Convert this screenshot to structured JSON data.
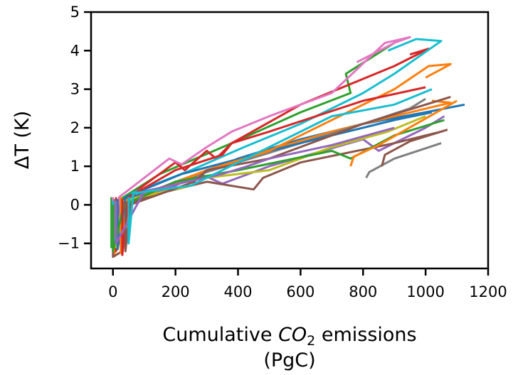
{
  "chart_data": {
    "type": "line",
    "title": "",
    "ylabel": "ΔT (K)",
    "xlabel": {
      "prefix": "Cumulative ",
      "math": "CO",
      "sub": "2",
      "suffix": " emissions",
      "line2": "(PgC)"
    },
    "xlim": [
      -70,
      1200
    ],
    "ylim": [
      -1.65,
      5
    ],
    "xticks": [
      0,
      200,
      400,
      600,
      800,
      1000,
      1200
    ],
    "xtick_labels": [
      "0",
      "200",
      "400",
      "600",
      "800",
      "1000",
      "1200"
    ],
    "yticks": [
      -1,
      0,
      1,
      2,
      3,
      4,
      5
    ],
    "ytick_labels": [
      "−1",
      "0",
      "1",
      "2",
      "3",
      "4",
      "5"
    ],
    "grid": false,
    "legend": "none",
    "colors": [
      "#1f77b4",
      "#ff7f0e",
      "#2ca02c",
      "#d62728",
      "#9467bd",
      "#8c564b",
      "#e377c2",
      "#7f7f7f",
      "#bcbd22",
      "#17becf"
    ],
    "series": [
      {
        "color": "#1f77b4",
        "points": [
          [
            0,
            0.1
          ],
          [
            0,
            -1.1
          ],
          [
            10,
            0.1
          ],
          [
            100,
            0.3
          ],
          [
            250,
            0.7
          ],
          [
            400,
            1.2
          ],
          [
            600,
            1.7
          ],
          [
            800,
            2.1
          ],
          [
            1000,
            2.4
          ],
          [
            1125,
            2.6
          ]
        ]
      },
      {
        "color": "#ff7f0e",
        "points": [
          [
            5,
            0.1
          ],
          [
            5,
            -1.3
          ],
          [
            20,
            0.0
          ],
          [
            120,
            0.35
          ],
          [
            300,
            0.9
          ],
          [
            450,
            1.3
          ],
          [
            700,
            1.9
          ],
          [
            900,
            2.3
          ],
          [
            1080,
            2.65
          ],
          [
            1020,
            2.7
          ]
        ]
      },
      {
        "color": "#2ca02c",
        "points": [
          [
            -5,
            0.2
          ],
          [
            -5,
            -1.1
          ],
          [
            15,
            0.1
          ],
          [
            150,
            0.8
          ],
          [
            380,
            1.6
          ],
          [
            600,
            2.4
          ],
          [
            760,
            2.9
          ],
          [
            745,
            3.4
          ],
          [
            900,
            4.2
          ]
        ]
      },
      {
        "color": "#d62728",
        "points": [
          [
            10,
            0.2
          ],
          [
            10,
            -1.2
          ],
          [
            30,
            0.1
          ],
          [
            200,
            1.1
          ],
          [
            230,
            0.9
          ],
          [
            300,
            1.4
          ],
          [
            330,
            1.2
          ],
          [
            380,
            1.6
          ],
          [
            600,
            2.6
          ],
          [
            900,
            3.6
          ],
          [
            1010,
            4.05
          ],
          [
            950,
            3.9
          ]
        ]
      },
      {
        "color": "#9467bd",
        "points": [
          [
            20,
            0.1
          ],
          [
            20,
            -1.0
          ],
          [
            40,
            0.0
          ],
          [
            200,
            0.5
          ],
          [
            280,
            0.8
          ],
          [
            350,
            0.55
          ],
          [
            500,
            1.0
          ],
          [
            800,
            1.7
          ],
          [
            850,
            1.4
          ],
          [
            1000,
            2.0
          ],
          [
            1060,
            2.3
          ]
        ]
      },
      {
        "color": "#8c564b",
        "points": [
          [
            0,
            0.1
          ],
          [
            0,
            -1.35
          ],
          [
            30,
            -1.2
          ],
          [
            40,
            0.0
          ],
          [
            150,
            0.3
          ],
          [
            300,
            0.6
          ],
          [
            450,
            0.4
          ],
          [
            480,
            0.7
          ],
          [
            600,
            1.1
          ],
          [
            900,
            1.6
          ],
          [
            1050,
            1.9
          ]
        ]
      },
      {
        "color": "#e377c2",
        "points": [
          [
            0,
            0.2
          ],
          [
            0,
            -1.0
          ],
          [
            20,
            0.2
          ],
          [
            180,
            1.2
          ],
          [
            220,
            1.05
          ],
          [
            300,
            1.5
          ],
          [
            380,
            1.9
          ],
          [
            500,
            2.3
          ],
          [
            700,
            2.9
          ],
          [
            870,
            4.2
          ],
          [
            950,
            4.35
          ],
          [
            900,
            4.2
          ],
          [
            780,
            3.7
          ]
        ]
      },
      {
        "color": "#7f7f7f",
        "points": [
          [
            5,
            0.15
          ],
          [
            5,
            -0.9
          ],
          [
            50,
            0.1
          ],
          [
            200,
            0.6
          ],
          [
            400,
            1.1
          ],
          [
            600,
            1.6
          ],
          [
            800,
            2.1
          ],
          [
            950,
            2.5
          ],
          [
            1000,
            2.75
          ]
        ]
      },
      {
        "color": "#bcbd22",
        "points": [
          [
            10,
            0.1
          ],
          [
            10,
            -1.1
          ],
          [
            30,
            0.1
          ],
          [
            250,
            0.5
          ],
          [
            300,
            0.7
          ],
          [
            500,
            0.9
          ],
          [
            700,
            1.5
          ],
          [
            880,
            1.9
          ],
          [
            1000,
            2.3
          ]
        ]
      },
      {
        "color": "#17becf",
        "points": [
          [
            0,
            0.1
          ],
          [
            0,
            -1.05
          ],
          [
            60,
            0.3
          ],
          [
            250,
            0.9
          ],
          [
            420,
            1.5
          ],
          [
            600,
            2.1
          ],
          [
            800,
            2.9
          ],
          [
            900,
            3.4
          ],
          [
            1050,
            4.25
          ],
          [
            970,
            4.3
          ],
          [
            880,
            4.0
          ]
        ]
      },
      {
        "color": "#1f77b4",
        "points": [
          [
            15,
            0.15
          ],
          [
            15,
            -1.15
          ],
          [
            40,
            0.2
          ],
          [
            220,
            0.8
          ],
          [
            500,
            1.4
          ],
          [
            700,
            1.8
          ],
          [
            900,
            2.2
          ],
          [
            1020,
            2.4
          ]
        ]
      },
      {
        "color": "#ff7f0e",
        "points": [
          [
            25,
            0.2
          ],
          [
            25,
            -1.25
          ],
          [
            45,
            0.05
          ],
          [
            300,
            0.9
          ],
          [
            500,
            1.4
          ],
          [
            900,
            3.0
          ],
          [
            1010,
            3.6
          ],
          [
            1080,
            3.65
          ],
          [
            1000,
            3.3
          ]
        ]
      },
      {
        "color": "#2ca02c",
        "points": [
          [
            0,
            0.0
          ],
          [
            0,
            -1.2
          ],
          [
            35,
            0.0
          ],
          [
            200,
            0.6
          ],
          [
            400,
            0.9
          ],
          [
            700,
            1.4
          ],
          [
            760,
            1.2
          ],
          [
            900,
            1.8
          ],
          [
            1060,
            2.2
          ]
        ]
      },
      {
        "color": "#d62728",
        "points": [
          [
            30,
            0.15
          ],
          [
            30,
            -1.3
          ],
          [
            50,
            0.2
          ],
          [
            200,
            0.9
          ],
          [
            350,
            1.3
          ],
          [
            380,
            1.6
          ],
          [
            500,
            1.9
          ],
          [
            800,
            2.7
          ],
          [
            1000,
            3.05
          ]
        ]
      },
      {
        "color": "#8c564b",
        "points": [
          [
            40,
            0.1
          ],
          [
            40,
            -1.2
          ],
          [
            55,
            0.0
          ],
          [
            260,
            0.6
          ],
          [
            300,
            0.9
          ],
          [
            500,
            1.2
          ],
          [
            800,
            2.1
          ],
          [
            1000,
            2.6
          ],
          [
            1080,
            2.8
          ]
        ]
      },
      {
        "color": "#7f7f7f",
        "points": [
          [
            810,
            0.7
          ],
          [
            820,
            0.85
          ],
          [
            900,
            1.2
          ],
          [
            1050,
            1.6
          ]
        ]
      },
      {
        "color": "#9467bd",
        "points": [
          [
            10,
            0.1
          ],
          [
            10,
            -1.0
          ],
          [
            100,
            0.35
          ],
          [
            350,
            0.8
          ],
          [
            430,
            1.0
          ],
          [
            500,
            1.2
          ],
          [
            700,
            1.55
          ],
          [
            900,
            2.0
          ]
        ]
      },
      {
        "color": "#17becf",
        "points": [
          [
            50,
            0.2
          ],
          [
            50,
            -1.0
          ],
          [
            65,
            0.3
          ],
          [
            250,
            0.5
          ],
          [
            450,
            1.3
          ],
          [
            700,
            2.3
          ],
          [
            900,
            2.6
          ],
          [
            1020,
            3.0
          ]
        ]
      },
      {
        "color": "#8c564b",
        "points": [
          [
            860,
            1.0
          ],
          [
            870,
            1.3
          ],
          [
            950,
            1.65
          ],
          [
            1070,
            1.95
          ]
        ]
      },
      {
        "color": "#ff7f0e",
        "points": [
          [
            760,
            1.0
          ],
          [
            770,
            1.25
          ],
          [
            850,
            1.55
          ],
          [
            1100,
            2.7
          ]
        ]
      }
    ]
  }
}
